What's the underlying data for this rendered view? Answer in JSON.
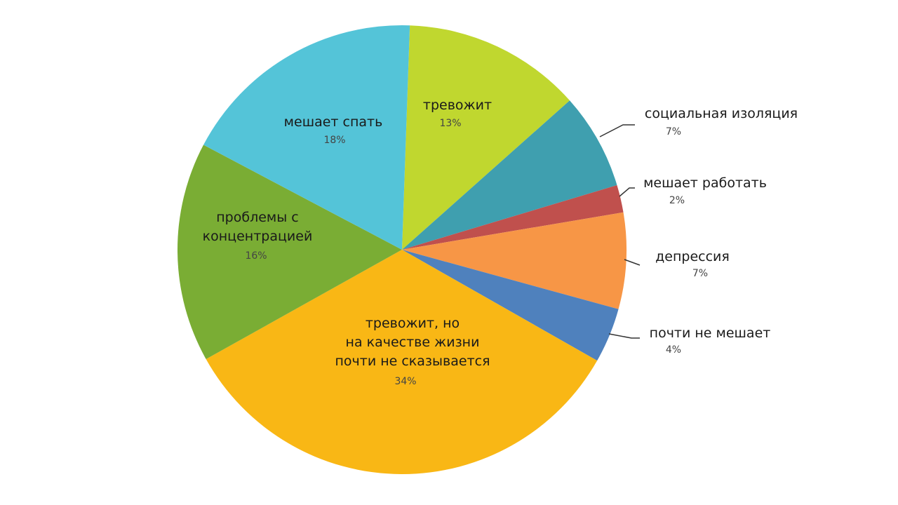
{
  "chart_data": {
    "type": "pie",
    "categories": [
      "тревожит",
      "социальная изоляция",
      "мешает работать",
      "депрессия",
      "почти не мешает",
      "тревожит, но\nна качестве жизни\nпочти не сказывается",
      "проблемы с\nконцентрацией",
      "мешает спать"
    ],
    "values": [
      13,
      7,
      2,
      7,
      4,
      34,
      16,
      18
    ],
    "value_labels": [
      "13%",
      "7%",
      "2%",
      "7%",
      "4%",
      "34%",
      "16%",
      "18%"
    ],
    "colors": [
      "#c0d72f",
      "#3f9faf",
      "#c0504d",
      "#f79646",
      "#4f81bd",
      "#f9b715",
      "#7aad34",
      "#54c4d8"
    ]
  }
}
